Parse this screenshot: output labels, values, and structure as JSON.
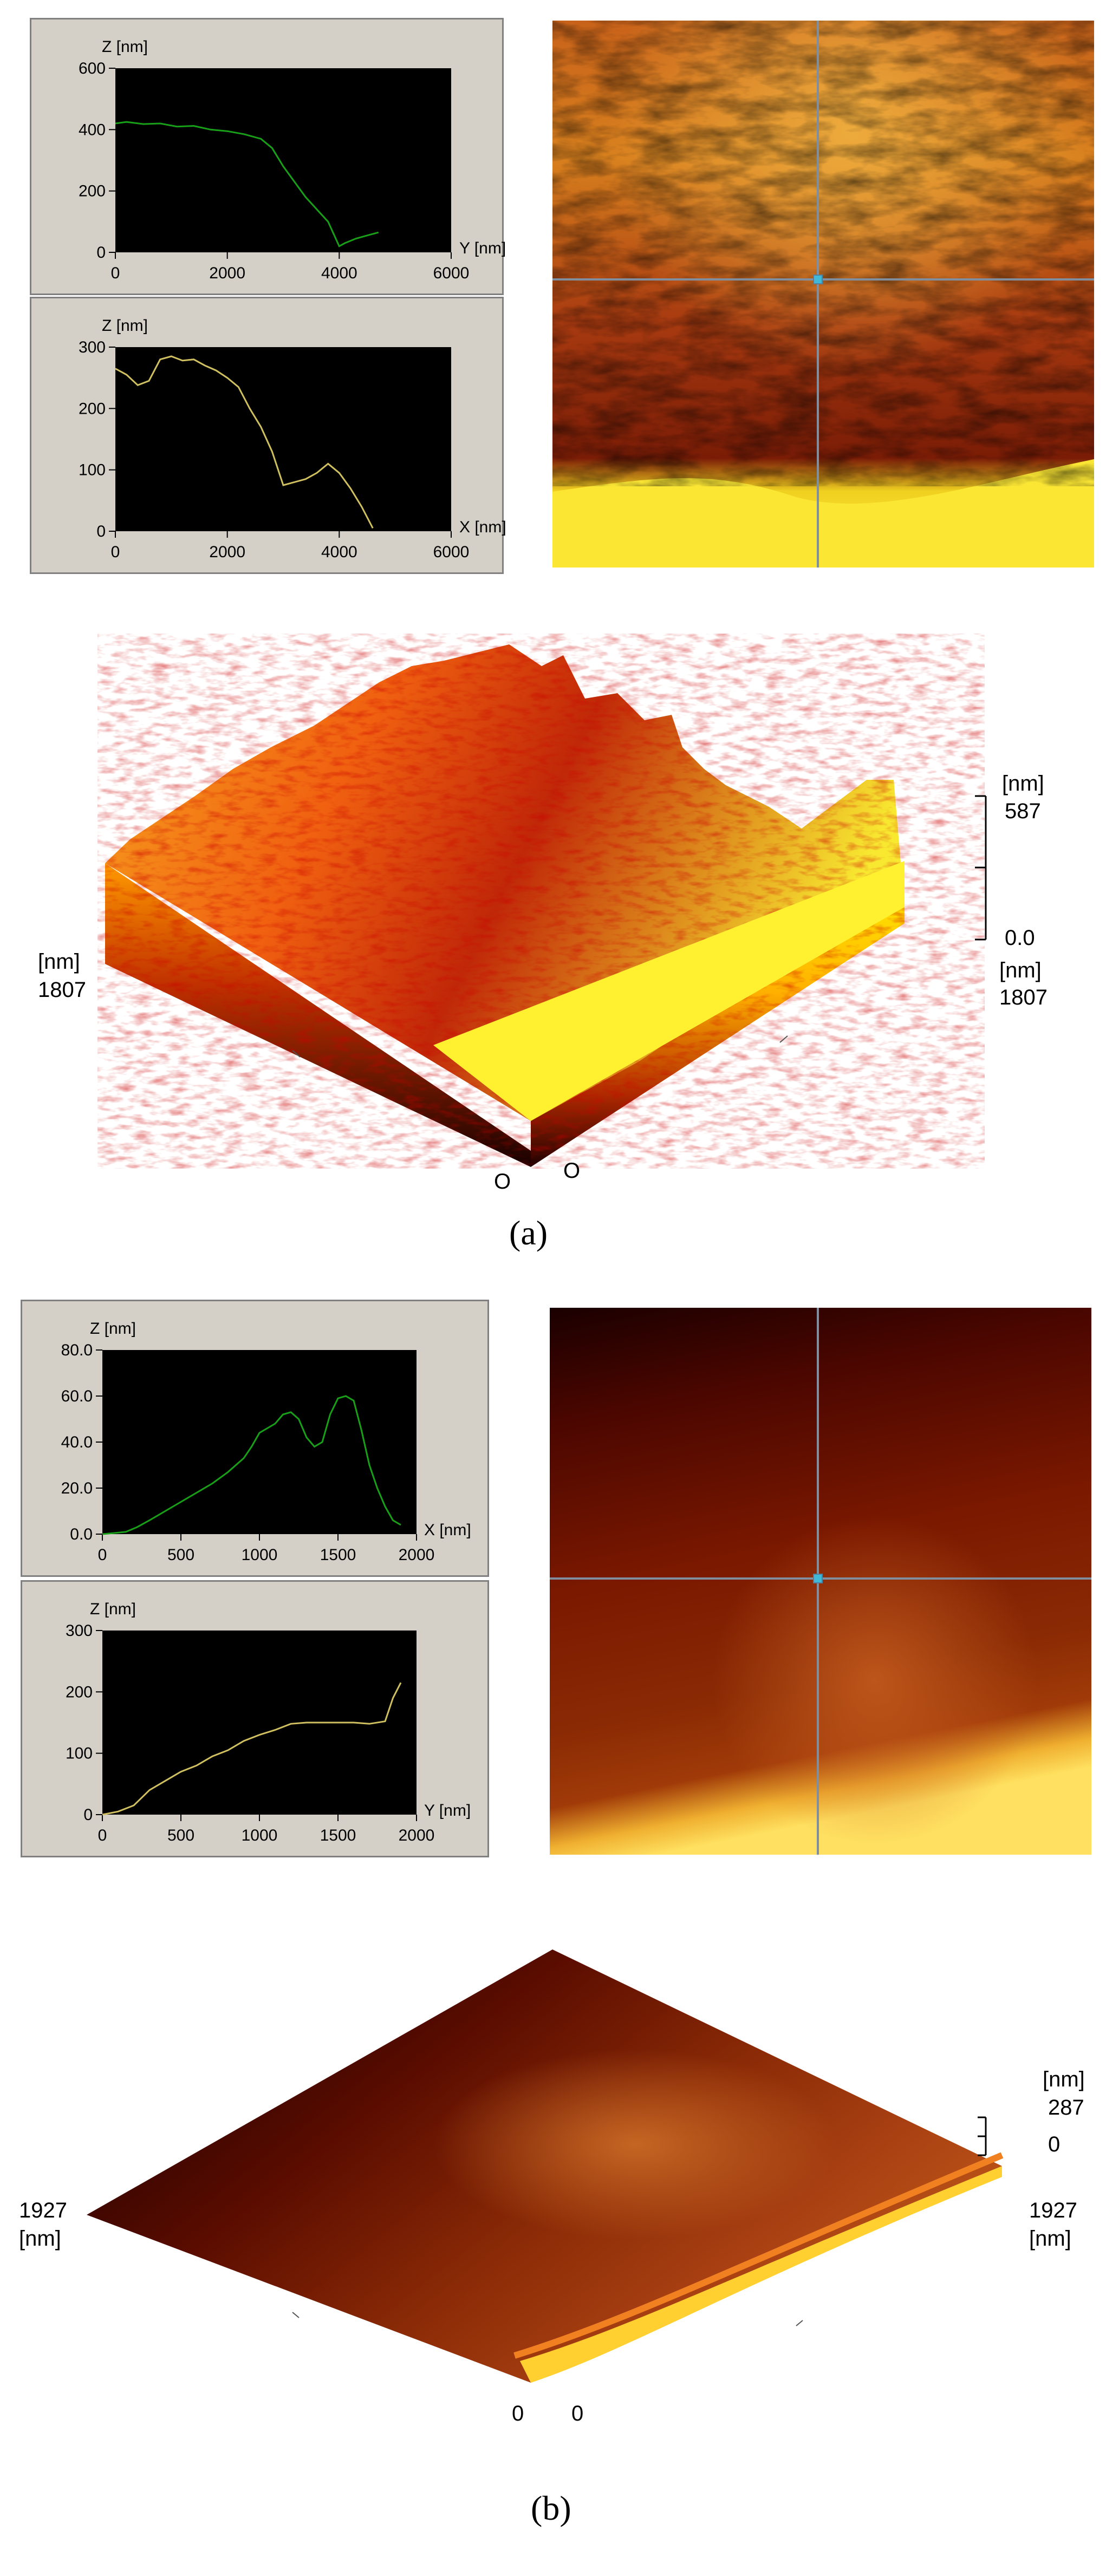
{
  "figure_a": {
    "caption": "(a)",
    "profiles": [
      {
        "z_unit": "Z [nm]",
        "x_axis_label": "Y [nm]",
        "y_ticks": [
          "600",
          "400",
          "200",
          "0"
        ],
        "x_ticks": [
          "0",
          "2000",
          "4000",
          "6000"
        ]
      },
      {
        "z_unit": "Z [nm]",
        "x_axis_label": "X [nm]",
        "y_ticks": [
          "300",
          "200",
          "100",
          "0"
        ],
        "x_ticks": [
          "0",
          "2000",
          "4000",
          "6000"
        ]
      }
    ],
    "three_d": {
      "z_unit": "[nm]",
      "z_max": "587",
      "z_min": "0.0",
      "left_unit": "[nm]",
      "left_extent": "1807",
      "right_unit": "[nm]",
      "right_extent": "1807",
      "origin_left": "O",
      "origin_right": "O"
    }
  },
  "figure_b": {
    "caption": "(b)",
    "profiles": [
      {
        "z_unit": "Z [nm]",
        "x_axis_label": "X [nm]",
        "y_ticks": [
          "80.0",
          "60.0",
          "40.0",
          "20.0",
          "0.0"
        ],
        "x_ticks": [
          "0",
          "500",
          "1000",
          "1500",
          "2000"
        ]
      },
      {
        "z_unit": "Z [nm]",
        "x_axis_label": "Y [nm]",
        "y_ticks": [
          "300",
          "200",
          "100",
          "0"
        ],
        "x_ticks": [
          "0",
          "500",
          "1000",
          "1500",
          "2000"
        ]
      }
    ],
    "three_d": {
      "z_unit": "[nm]",
      "z_max": "287",
      "z_min": "0",
      "left_extent": "1927",
      "left_unit": "[nm]",
      "right_extent": "1927",
      "right_unit": "[nm]",
      "origin_left": "0",
      "origin_right": "0"
    }
  },
  "chart_data": [
    {
      "type": "line",
      "panel": "a-top",
      "xlim": [
        0,
        6000
      ],
      "ylim": [
        0,
        600
      ],
      "series": [
        {
          "color": "#18a018",
          "x": [
            0,
            200,
            500,
            800,
            1100,
            1400,
            1700,
            2000,
            2300,
            2600,
            2800,
            3000,
            3200,
            3400,
            3600,
            3800,
            3900,
            4000,
            4100,
            4300,
            4500,
            4700
          ],
          "y": [
            420,
            425,
            418,
            420,
            410,
            412,
            400,
            395,
            385,
            370,
            340,
            280,
            230,
            180,
            140,
            100,
            60,
            20,
            30,
            45,
            55,
            65
          ]
        }
      ]
    },
    {
      "type": "line",
      "panel": "a-bottom",
      "xlim": [
        0,
        6000
      ],
      "ylim": [
        0,
        300
      ],
      "series": [
        {
          "color": "#d0c060",
          "x": [
            0,
            200,
            400,
            600,
            800,
            1000,
            1200,
            1400,
            1600,
            1800,
            2000,
            2200,
            2400,
            2600,
            2800,
            3000,
            3200,
            3400,
            3600,
            3800,
            4000,
            4200,
            4400,
            4600
          ],
          "y": [
            265,
            255,
            238,
            245,
            280,
            285,
            278,
            280,
            270,
            262,
            250,
            235,
            200,
            170,
            130,
            75,
            80,
            85,
            95,
            110,
            95,
            70,
            40,
            5
          ]
        }
      ]
    },
    {
      "type": "line",
      "panel": "b-top",
      "xlim": [
        0,
        2000
      ],
      "ylim": [
        0,
        80
      ],
      "series": [
        {
          "color": "#18a018",
          "x": [
            0,
            80,
            150,
            220,
            300,
            400,
            500,
            600,
            700,
            800,
            900,
            950,
            1000,
            1050,
            1100,
            1150,
            1200,
            1250,
            1300,
            1350,
            1400,
            1450,
            1500,
            1550,
            1600,
            1650,
            1700,
            1750,
            1800,
            1850,
            1900
          ],
          "y": [
            0,
            0.5,
            1,
            3,
            6,
            10,
            14,
            18,
            22,
            27,
            33,
            38,
            44,
            46,
            48,
            52,
            53,
            50,
            42,
            38,
            40,
            52,
            59,
            60,
            58,
            45,
            30,
            20,
            12,
            6,
            4
          ]
        }
      ]
    },
    {
      "type": "line",
      "panel": "b-bottom",
      "xlim": [
        0,
        2000
      ],
      "ylim": [
        0,
        300
      ],
      "series": [
        {
          "color": "#d0c060",
          "x": [
            0,
            100,
            200,
            300,
            400,
            500,
            600,
            700,
            800,
            900,
            1000,
            1100,
            1200,
            1300,
            1400,
            1500,
            1600,
            1700,
            1800,
            1850,
            1900
          ],
          "y": [
            0,
            5,
            15,
            40,
            55,
            70,
            80,
            95,
            105,
            120,
            130,
            138,
            148,
            150,
            150,
            150,
            150,
            148,
            152,
            190,
            215
          ]
        }
      ]
    }
  ]
}
